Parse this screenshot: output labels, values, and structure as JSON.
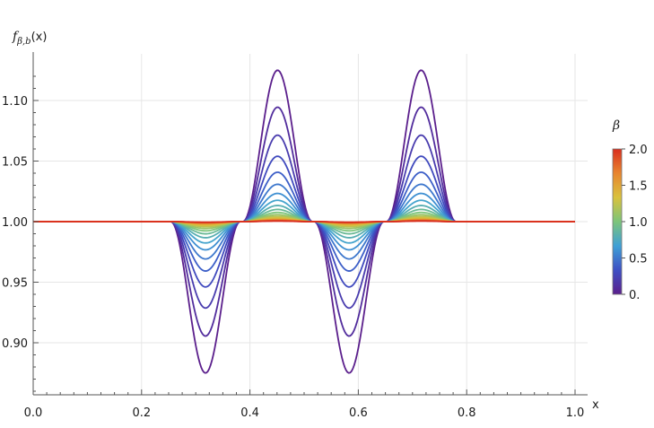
{
  "chart_data": {
    "type": "line",
    "ylabel_main": "f",
    "ylabel_sub": "β,b",
    "ylabel_arg": "(x)",
    "xlabel": "x",
    "xlim": [
      0.0,
      1.0
    ],
    "ylim": [
      0.86,
      1.13
    ],
    "x_ticks": [
      "0.0",
      "0.2",
      "0.4",
      "0.6",
      "0.8",
      "1.0"
    ],
    "y_ticks": [
      "0.90",
      "0.95",
      "1.00",
      "1.05",
      "1.10"
    ],
    "grid": true,
    "baseline": 1.0,
    "bumps": [
      {
        "center": 0.318,
        "half_width": 0.064,
        "direction": -1,
        "peak_at_beta0": 0.875
      },
      {
        "center": 0.451,
        "half_width": 0.064,
        "direction": 1,
        "peak_at_beta0": 1.125
      },
      {
        "center": 0.583,
        "half_width": 0.064,
        "direction": -1,
        "peak_at_beta0": 0.875
      },
      {
        "center": 0.716,
        "half_width": 0.064,
        "direction": 1,
        "peak_at_beta0": 1.125
      }
    ],
    "series_beta_values": [
      0.0,
      0.1,
      0.2,
      0.3,
      0.4,
      0.5,
      0.6,
      0.7,
      0.8,
      0.9,
      1.0,
      1.1,
      1.2,
      1.3,
      1.4,
      1.5,
      1.6,
      1.7,
      1.8,
      1.9,
      2.0
    ],
    "colorbar": {
      "title": "β",
      "ticks": [
        "0.",
        "0.5",
        "1.0",
        "1.5",
        "2.0"
      ],
      "range": [
        0,
        2
      ],
      "colors": [
        "#5b1f8c",
        "#3d4fc4",
        "#3fa0d6",
        "#7cc47a",
        "#d9c23d",
        "#e8852e",
        "#d92e1e"
      ]
    }
  }
}
